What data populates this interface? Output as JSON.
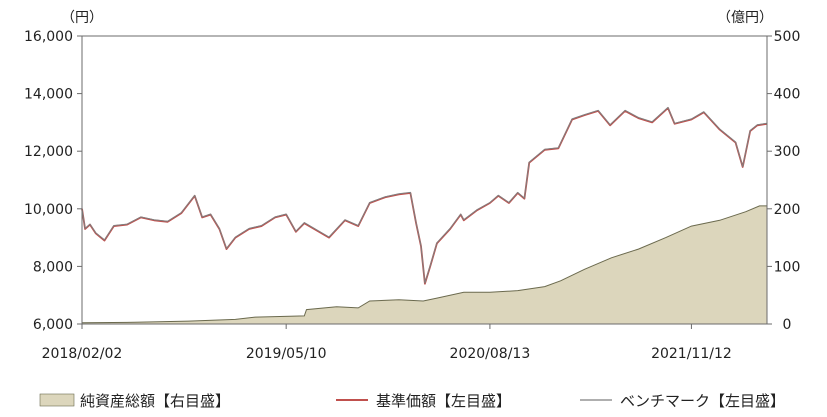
{
  "chart_data": {
    "type": "line",
    "left_unit": "（円）",
    "right_unit": "（億円）",
    "x_tick_labels": [
      "2018/02/02",
      "2019/05/10",
      "2020/08/13",
      "2021/11/12"
    ],
    "x_tick_dates": [
      "2018-02-02",
      "2019-05-10",
      "2020-08-13",
      "2021-11-12"
    ],
    "x_range": [
      "2018-02-02",
      "2022-05-02"
    ],
    "left_axis": {
      "min": 6000,
      "max": 16000,
      "ticks": [
        "6,000",
        "8,000",
        "10,000",
        "12,000",
        "14,000",
        "16,000"
      ]
    },
    "right_axis": {
      "min": 0,
      "max": 500,
      "ticks": [
        "0",
        "100",
        "200",
        "300",
        "400",
        "500"
      ]
    },
    "grid": false,
    "legend_position": "bottom",
    "series": [
      {
        "name": "純資産総額【右目盛】",
        "kind": "area",
        "axis": "right",
        "color": "#dcd6bc",
        "edge_color": "#6b6a4e",
        "points": [
          [
            "2018-02-02",
            2
          ],
          [
            "2018-06-01",
            3
          ],
          [
            "2018-10-01",
            5
          ],
          [
            "2019-01-15",
            8
          ],
          [
            "2019-03-01",
            12
          ],
          [
            "2019-06-20",
            14
          ],
          [
            "2019-06-25",
            25
          ],
          [
            "2019-09-01",
            30
          ],
          [
            "2019-10-20",
            28
          ],
          [
            "2019-11-15",
            40
          ],
          [
            "2020-01-20",
            42
          ],
          [
            "2020-03-15",
            40
          ],
          [
            "2020-04-15",
            45
          ],
          [
            "2020-06-15",
            55
          ],
          [
            "2020-08-13",
            55
          ],
          [
            "2020-10-15",
            58
          ],
          [
            "2020-12-15",
            65
          ],
          [
            "2021-01-20",
            75
          ],
          [
            "2021-03-15",
            95
          ],
          [
            "2021-05-15",
            115
          ],
          [
            "2021-07-15",
            130
          ],
          [
            "2021-09-15",
            150
          ],
          [
            "2021-11-12",
            170
          ],
          [
            "2022-01-15",
            180
          ],
          [
            "2022-03-15",
            195
          ],
          [
            "2022-04-15",
            205
          ],
          [
            "2022-05-02",
            205
          ]
        ]
      },
      {
        "name": "基準価額【左目盛】",
        "kind": "line",
        "axis": "left",
        "color": "#c0504d",
        "points": [
          [
            "2018-02-02",
            10000
          ],
          [
            "2018-02-09",
            9300
          ],
          [
            "2018-02-20",
            9450
          ],
          [
            "2018-03-05",
            9150
          ],
          [
            "2018-03-25",
            8900
          ],
          [
            "2018-04-15",
            9400
          ],
          [
            "2018-05-15",
            9450
          ],
          [
            "2018-06-15",
            9700
          ],
          [
            "2018-07-15",
            9600
          ],
          [
            "2018-08-15",
            9550
          ],
          [
            "2018-09-15",
            9850
          ],
          [
            "2018-10-15",
            10450
          ],
          [
            "2018-11-01",
            9700
          ],
          [
            "2018-11-20",
            9800
          ],
          [
            "2018-12-10",
            9300
          ],
          [
            "2018-12-26",
            8600
          ],
          [
            "2019-01-15",
            9000
          ],
          [
            "2019-02-15",
            9300
          ],
          [
            "2019-03-15",
            9400
          ],
          [
            "2019-04-15",
            9700
          ],
          [
            "2019-05-10",
            9800
          ],
          [
            "2019-06-01",
            9200
          ],
          [
            "2019-06-20",
            9500
          ],
          [
            "2019-08-15",
            9000
          ],
          [
            "2019-09-20",
            9600
          ],
          [
            "2019-10-20",
            9400
          ],
          [
            "2019-11-15",
            10200
          ],
          [
            "2019-12-20",
            10400
          ],
          [
            "2020-01-20",
            10500
          ],
          [
            "2020-02-15",
            10550
          ],
          [
            "2020-02-28",
            9500
          ],
          [
            "2020-03-10",
            8700
          ],
          [
            "2020-03-19",
            7400
          ],
          [
            "2020-03-31",
            8000
          ],
          [
            "2020-04-15",
            8800
          ],
          [
            "2020-05-15",
            9300
          ],
          [
            "2020-06-08",
            9800
          ],
          [
            "2020-06-15",
            9600
          ],
          [
            "2020-07-15",
            9950
          ],
          [
            "2020-08-13",
            10200
          ],
          [
            "2020-09-01",
            10450
          ],
          [
            "2020-09-25",
            10200
          ],
          [
            "2020-10-15",
            10550
          ],
          [
            "2020-10-30",
            10350
          ],
          [
            "2020-11-10",
            11600
          ],
          [
            "2020-12-15",
            12050
          ],
          [
            "2021-01-15",
            12100
          ],
          [
            "2021-02-15",
            13100
          ],
          [
            "2021-03-15",
            13250
          ],
          [
            "2021-04-15",
            13400
          ],
          [
            "2021-05-12",
            12900
          ],
          [
            "2021-06-15",
            13400
          ],
          [
            "2021-07-15",
            13150
          ],
          [
            "2021-08-15",
            13000
          ],
          [
            "2021-09-20",
            13500
          ],
          [
            "2021-10-05",
            12950
          ],
          [
            "2021-11-12",
            13100
          ],
          [
            "2021-12-10",
            13350
          ],
          [
            "2022-01-15",
            12750
          ],
          [
            "2022-02-20",
            12300
          ],
          [
            "2022-03-08",
            11450
          ],
          [
            "2022-03-25",
            12700
          ],
          [
            "2022-04-10",
            12900
          ],
          [
            "2022-05-02",
            12950
          ]
        ]
      },
      {
        "name": "ベンチマーク【左目盛】",
        "kind": "line",
        "axis": "left",
        "color": "#7f7f7f",
        "points": [
          [
            "2018-02-02",
            10000
          ],
          [
            "2018-02-09",
            9320
          ],
          [
            "2018-02-20",
            9470
          ],
          [
            "2018-03-05",
            9170
          ],
          [
            "2018-03-25",
            8920
          ],
          [
            "2018-04-15",
            9420
          ],
          [
            "2018-05-15",
            9470
          ],
          [
            "2018-06-15",
            9720
          ],
          [
            "2018-07-15",
            9620
          ],
          [
            "2018-08-15",
            9570
          ],
          [
            "2018-09-15",
            9870
          ],
          [
            "2018-10-15",
            10470
          ],
          [
            "2018-11-01",
            9720
          ],
          [
            "2018-11-20",
            9820
          ],
          [
            "2018-12-10",
            9320
          ],
          [
            "2018-12-26",
            8620
          ],
          [
            "2019-01-15",
            9020
          ],
          [
            "2019-02-15",
            9320
          ],
          [
            "2019-03-15",
            9420
          ],
          [
            "2019-04-15",
            9720
          ],
          [
            "2019-05-10",
            9820
          ],
          [
            "2019-06-01",
            9220
          ],
          [
            "2019-06-20",
            9520
          ],
          [
            "2019-08-15",
            9020
          ],
          [
            "2019-09-20",
            9620
          ],
          [
            "2019-10-20",
            9420
          ],
          [
            "2019-11-15",
            10220
          ],
          [
            "2019-12-20",
            10420
          ],
          [
            "2020-01-20",
            10520
          ],
          [
            "2020-02-15",
            10570
          ],
          [
            "2020-02-28",
            9520
          ],
          [
            "2020-03-10",
            8720
          ],
          [
            "2020-03-19",
            7420
          ],
          [
            "2020-03-31",
            8020
          ],
          [
            "2020-04-15",
            8820
          ],
          [
            "2020-05-15",
            9320
          ],
          [
            "2020-06-08",
            9820
          ],
          [
            "2020-06-15",
            9620
          ],
          [
            "2020-07-15",
            9970
          ],
          [
            "2020-08-13",
            10220
          ],
          [
            "2020-09-01",
            10470
          ],
          [
            "2020-09-25",
            10220
          ],
          [
            "2020-10-15",
            10570
          ],
          [
            "2020-10-30",
            10370
          ],
          [
            "2020-11-10",
            11620
          ],
          [
            "2020-12-15",
            12070
          ],
          [
            "2021-01-15",
            12120
          ],
          [
            "2021-02-15",
            13120
          ],
          [
            "2021-03-15",
            13270
          ],
          [
            "2021-04-15",
            13420
          ],
          [
            "2021-05-12",
            12920
          ],
          [
            "2021-06-15",
            13420
          ],
          [
            "2021-07-15",
            13170
          ],
          [
            "2021-08-15",
            13020
          ],
          [
            "2021-09-20",
            13520
          ],
          [
            "2021-10-05",
            12970
          ],
          [
            "2021-11-12",
            13120
          ],
          [
            "2021-12-10",
            13370
          ],
          [
            "2022-01-15",
            12770
          ],
          [
            "2022-02-20",
            12320
          ],
          [
            "2022-03-08",
            11470
          ],
          [
            "2022-03-25",
            12720
          ],
          [
            "2022-04-10",
            12920
          ],
          [
            "2022-05-02",
            12970
          ]
        ]
      }
    ]
  }
}
